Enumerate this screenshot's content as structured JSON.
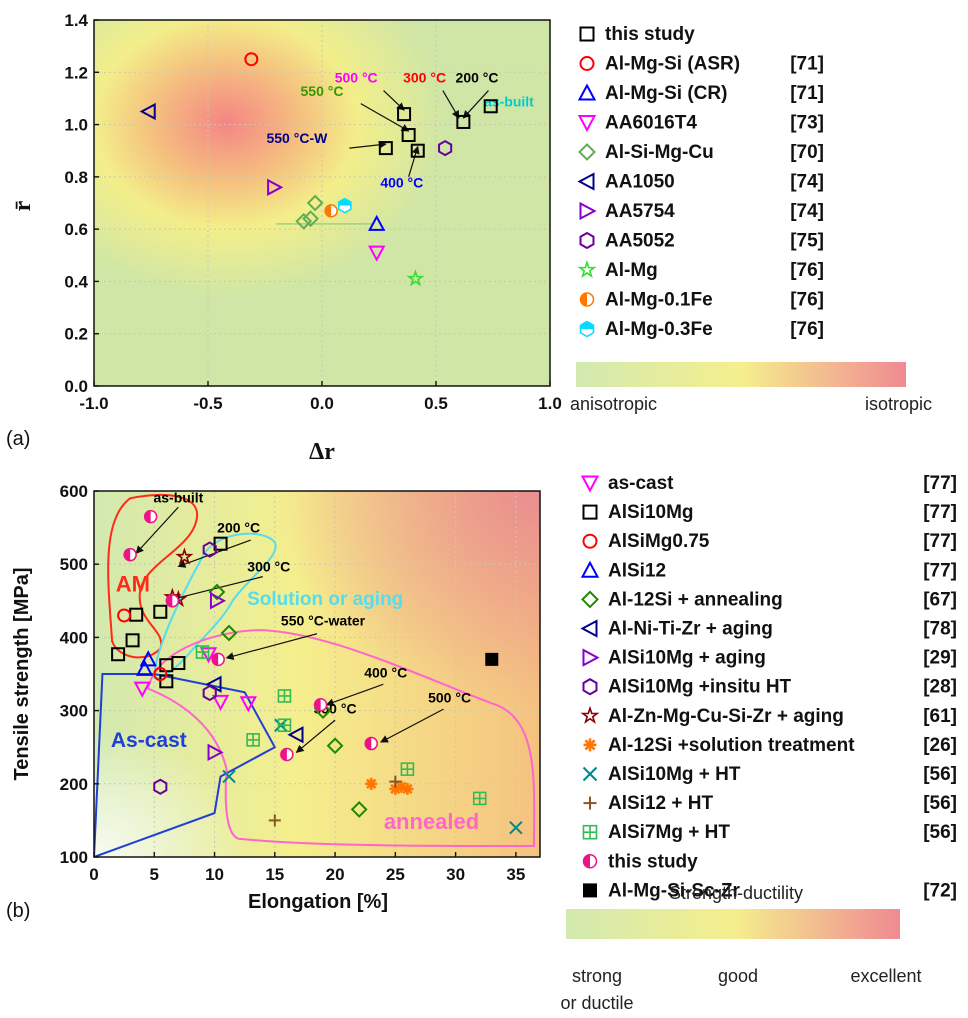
{
  "chart_data": [
    {
      "type": "scatter",
      "panel": "(a)",
      "xlabel": "Δr",
      "ylabel": "r̄",
      "xlim": [
        -1.0,
        1.0
      ],
      "ylim": [
        0.0,
        1.4
      ],
      "xticks": [
        "-1.0",
        "-0.5",
        "0.0",
        "0.5",
        "1.0"
      ],
      "yticks": [
        "0.0",
        "0.2",
        "0.4",
        "0.6",
        "0.8",
        "1.0",
        "1.2",
        "1.4"
      ],
      "grid": "on",
      "legend_position": "right",
      "series": [
        {
          "name": "this study",
          "ref": "",
          "marker": "square",
          "color": "#000000",
          "points": [
            [
              0.74,
              1.07
            ],
            [
              0.62,
              1.01
            ],
            [
              0.36,
              1.04
            ],
            [
              0.38,
              0.96
            ],
            [
              0.28,
              0.91
            ],
            [
              0.42,
              0.9
            ]
          ]
        },
        {
          "name": "Al-Mg-Si (ASR)",
          "ref": "[71]",
          "marker": "circle",
          "color": "#ff0000",
          "points": [
            [
              -0.31,
              1.25
            ]
          ]
        },
        {
          "name": "Al-Mg-Si (CR)",
          "ref": "[71]",
          "marker": "triangle-up",
          "color": "#0000ff",
          "points": [
            [
              0.24,
              0.62
            ]
          ]
        },
        {
          "name": "AA6016T4",
          "ref": "[73]",
          "marker": "triangle-down",
          "color": "#ff00ff",
          "points": [
            [
              0.24,
              0.51
            ]
          ]
        },
        {
          "name": "Al-Si-Mg-Cu",
          "ref": "[70]",
          "marker": "diamond",
          "color": "#66aa55",
          "points": [
            [
              -0.08,
              0.63
            ],
            [
              -0.05,
              0.64
            ],
            [
              -0.03,
              0.7
            ]
          ]
        },
        {
          "name": "AA1050",
          "ref": "[74]",
          "marker": "triangle-left",
          "color": "#000088",
          "points": [
            [
              -0.76,
              1.05
            ]
          ]
        },
        {
          "name": "AA5754",
          "ref": "[74]",
          "marker": "triangle-right",
          "color": "#8800cc",
          "points": [
            [
              -0.21,
              0.76
            ]
          ]
        },
        {
          "name": "AA5052",
          "ref": "[75]",
          "marker": "hexagon",
          "color": "#660099",
          "points": [
            [
              0.54,
              0.91
            ]
          ]
        },
        {
          "name": "Al-Mg",
          "ref": "[76]",
          "marker": "star",
          "color": "#33dd33",
          "points": [
            [
              0.41,
              0.41
            ]
          ]
        },
        {
          "name": "Al-Mg-0.1Fe",
          "ref": "[76]",
          "marker": "half-circle",
          "color": "#ff7700",
          "points": [
            [
              0.04,
              0.67
            ]
          ]
        },
        {
          "name": "Al-Mg-0.3Fe",
          "ref": "[76]",
          "marker": "half-hexagon",
          "color": "#00ddff",
          "points": [
            [
              0.1,
              0.69
            ]
          ]
        }
      ],
      "annotations": [
        {
          "text": "500 °C",
          "color": "#ff00ff",
          "x": 0.15,
          "y": 1.16
        },
        {
          "text": "300 °C",
          "color": "#ff0000",
          "x": 0.45,
          "y": 1.16
        },
        {
          "text": "200 °C",
          "color": "#000000",
          "x": 0.68,
          "y": 1.16
        },
        {
          "text": "as-built",
          "color": "#00cccc",
          "x": 0.82,
          "y": 1.07
        },
        {
          "text": "550 °C",
          "color": "#339900",
          "x": 0.0,
          "y": 1.11
        },
        {
          "text": "550 °C-W",
          "color": "#000088",
          "x": -0.11,
          "y": 0.93
        },
        {
          "text": "400 °C",
          "color": "#0000ff",
          "x": 0.35,
          "y": 0.76
        }
      ],
      "colorbar": {
        "left": "anisotropic",
        "right": "isotropic"
      }
    },
    {
      "type": "scatter",
      "panel": "(b)",
      "xlabel": "Elongation [%]",
      "ylabel": "Tensile strength [MPa]",
      "xlim": [
        0,
        37
      ],
      "ylim": [
        100,
        600
      ],
      "xticks": [
        "0",
        "5",
        "10",
        "15",
        "20",
        "25",
        "30",
        "35"
      ],
      "yticks": [
        "100",
        "200",
        "300",
        "400",
        "500",
        "600"
      ],
      "grid": "on",
      "legend_position": "right",
      "series": [
        {
          "name": "as-cast",
          "ref": "[77]",
          "marker": "triangle-down",
          "color": "#ff00ff",
          "points": [
            [
              4.0,
              330
            ],
            [
              10.5,
              312
            ],
            [
              12.8,
              310
            ],
            [
              9.5,
              377
            ]
          ]
        },
        {
          "name": "AlSi10Mg",
          "ref": "[77]",
          "marker": "square",
          "color": "#000000",
          "points": [
            [
              2.0,
              377
            ],
            [
              3.2,
              396
            ],
            [
              3.5,
              431
            ],
            [
              5.5,
              435
            ],
            [
              6.0,
              362
            ],
            [
              7.0,
              365
            ],
            [
              6.0,
              340
            ],
            [
              10.5,
              528
            ]
          ]
        },
        {
          "name": "AlSiMg0.75",
          "ref": "[77]",
          "marker": "circle",
          "color": "#ff0000",
          "points": [
            [
              2.5,
              430
            ],
            [
              5.5,
              350
            ]
          ]
        },
        {
          "name": "AlSi12",
          "ref": "[77]",
          "marker": "triangle-up",
          "color": "#0000ff",
          "points": [
            [
              4.5,
              370
            ],
            [
              4.2,
              357
            ]
          ]
        },
        {
          "name": "Al-12Si + annealing",
          "ref": "[67]",
          "marker": "diamond",
          "color": "#228800",
          "points": [
            [
              10.2,
              462
            ],
            [
              11.2,
              406
            ],
            [
              19.0,
              300
            ],
            [
              20.0,
              252
            ],
            [
              22.0,
              165
            ]
          ]
        },
        {
          "name": "Al-Ni-Ti-Zr + aging",
          "ref": "[78]",
          "marker": "triangle-left",
          "color": "#000088",
          "points": [
            [
              16.8,
              267
            ],
            [
              10.0,
              336
            ]
          ]
        },
        {
          "name": "AlSi10Mg + aging",
          "ref": "[29]",
          "marker": "triangle-right",
          "color": "#8800cc",
          "points": [
            [
              10.2,
              450
            ],
            [
              10.0,
              243
            ]
          ]
        },
        {
          "name": "AlSi10Mg +insitu HT",
          "ref": "[28]",
          "marker": "hexagon",
          "color": "#660099",
          "points": [
            [
              9.6,
              520
            ],
            [
              9.6,
              324
            ],
            [
              5.5,
              196
            ]
          ]
        },
        {
          "name": "Al-Zn-Mg-Cu-Si-Zr + aging",
          "ref": "[61]",
          "marker": "star",
          "color": "#880000",
          "points": [
            [
              7.5,
              510
            ],
            [
              6.5,
              455
            ],
            [
              7.0,
              452
            ]
          ]
        },
        {
          "name": "Al-12Si +solution treatment",
          "ref": "[26]",
          "marker": "asterisk",
          "color": "#ff7700",
          "points": [
            [
              23.0,
              200
            ],
            [
              25.0,
              193
            ],
            [
              25.5,
              196
            ],
            [
              26.0,
              193
            ]
          ]
        },
        {
          "name": "AlSi10Mg + HT",
          "ref": "[56]",
          "marker": "x",
          "color": "#008888",
          "points": [
            [
              15.5,
              280
            ],
            [
              11.2,
              210
            ],
            [
              35.0,
              140
            ]
          ]
        },
        {
          "name": "AlSi12 + HT",
          "ref": "[56]",
          "marker": "plus",
          "color": "#885522",
          "points": [
            [
              15.0,
              150
            ],
            [
              25.0,
              203
            ]
          ]
        },
        {
          "name": "AlSi7Mg + HT",
          "ref": "[56]",
          "marker": "boxplus",
          "color": "#33bb55",
          "points": [
            [
              9.0,
              380
            ],
            [
              15.8,
              320
            ],
            [
              15.8,
              280
            ],
            [
              13.2,
              260
            ],
            [
              26.0,
              220
            ],
            [
              32.0,
              180
            ]
          ]
        },
        {
          "name": "this study",
          "ref": "",
          "marker": "half-circle",
          "color": "#ee1188",
          "points": [
            [
              4.7,
              565
            ],
            [
              3.0,
              513
            ],
            [
              6.5,
              450
            ],
            [
              10.3,
              370
            ],
            [
              18.8,
              308
            ],
            [
              16.0,
              240
            ],
            [
              23.0,
              255
            ]
          ]
        },
        {
          "name": "Al-Mg-Si-Sc-Zr",
          "ref": "[72]",
          "marker": "filled-square",
          "color": "#000000",
          "points": [
            [
              33.0,
              370
            ]
          ]
        }
      ],
      "annotations": [
        {
          "text": "as-built",
          "color": "#000000",
          "x": 7.0,
          "y": 584
        },
        {
          "text": "200 °C",
          "color": "#000000",
          "x": 12.0,
          "y": 543
        },
        {
          "text": "300 °C",
          "color": "#000000",
          "x": 14.5,
          "y": 490
        },
        {
          "text": "550 °C-water",
          "color": "#000000",
          "x": 19.0,
          "y": 416
        },
        {
          "text": "400 °C",
          "color": "#000000",
          "x": 24.2,
          "y": 345
        },
        {
          "text": "550 °C",
          "color": "#000000",
          "x": 20.0,
          "y": 296
        },
        {
          "text": "500 °C",
          "color": "#000000",
          "x": 29.5,
          "y": 311
        }
      ],
      "regions": [
        {
          "label": "AM",
          "color": "#ff2a1a"
        },
        {
          "label": "Solution or aging",
          "color": "#55ddee"
        },
        {
          "label": "As-cast",
          "color": "#1f3fd6"
        },
        {
          "label": "annealed",
          "color": "#ff66cc"
        }
      ],
      "colorbar": {
        "title": "Strength-ductility",
        "labels": [
          "strong",
          "good",
          "excellent"
        ],
        "sublabel": "or ductile"
      }
    }
  ]
}
